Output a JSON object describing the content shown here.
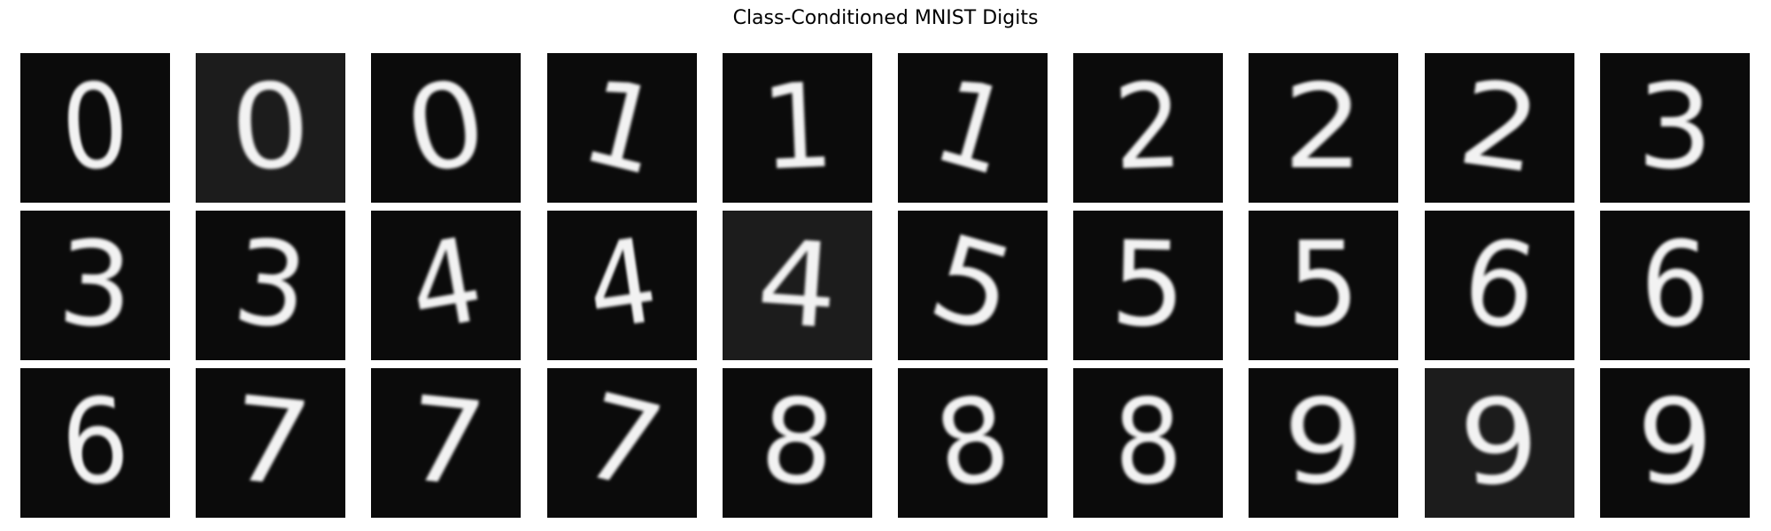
{
  "title": "Class-Conditioned MNIST Digits",
  "grid": {
    "rows": 3,
    "cols": 10
  },
  "digits": [
    "0",
    "0",
    "0",
    "1",
    "1",
    "1",
    "2",
    "2",
    "2",
    "3",
    "3",
    "3",
    "4",
    "4",
    "4",
    "5",
    "5",
    "5",
    "6",
    "6",
    "6",
    "7",
    "7",
    "7",
    "8",
    "8",
    "8",
    "9",
    "9",
    "9"
  ],
  "colors": {
    "background": "#0b0b0b",
    "background_light": "#1c1c1c",
    "stroke": "#f2f2f2"
  }
}
